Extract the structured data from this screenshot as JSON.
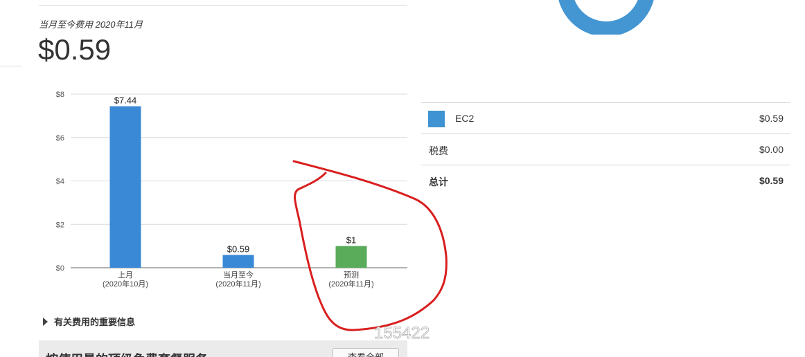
{
  "summary": {
    "period_label": "当月至今费用 2020年11月",
    "amount": "$0.59"
  },
  "chart_data": {
    "type": "bar",
    "categories": [
      "上月\n(2020年10月)",
      "当月至今\n(2020年11月)",
      "预测\n(2020年11月)"
    ],
    "category_lines": [
      [
        "上月",
        "(2020年10月)"
      ],
      [
        "当月至今",
        "(2020年11月)"
      ],
      [
        "预测",
        "(2020年11月)"
      ]
    ],
    "values": [
      7.44,
      0.59,
      1
    ],
    "data_labels": [
      "$7.44",
      "$0.59",
      "$1"
    ],
    "bar_colors": [
      "#3a89d6",
      "#3a89d6",
      "#5aab5a"
    ],
    "yticks": [
      0,
      2,
      4,
      6,
      8
    ],
    "ytick_labels": [
      "$0",
      "$2",
      "$4",
      "$6",
      "$8"
    ],
    "ylim": [
      0,
      8
    ],
    "grid": true
  },
  "breakdown": {
    "rows": [
      {
        "label": "EC2",
        "value": "$0.59",
        "swatch_color": "#3f93d2"
      },
      {
        "label": "税费",
        "value": "$0.00"
      },
      {
        "label": "总计",
        "value": "$0.59"
      }
    ]
  },
  "info_toggle": {
    "label": "有关费用的重要信息"
  },
  "bottom_panel": {
    "title": "按使用量的顶级免费套餐服务",
    "view_all_label": "查看全部"
  },
  "watermark": "155422",
  "colors": {
    "donut": "#4496d3",
    "annotation": "#d91f1f"
  }
}
